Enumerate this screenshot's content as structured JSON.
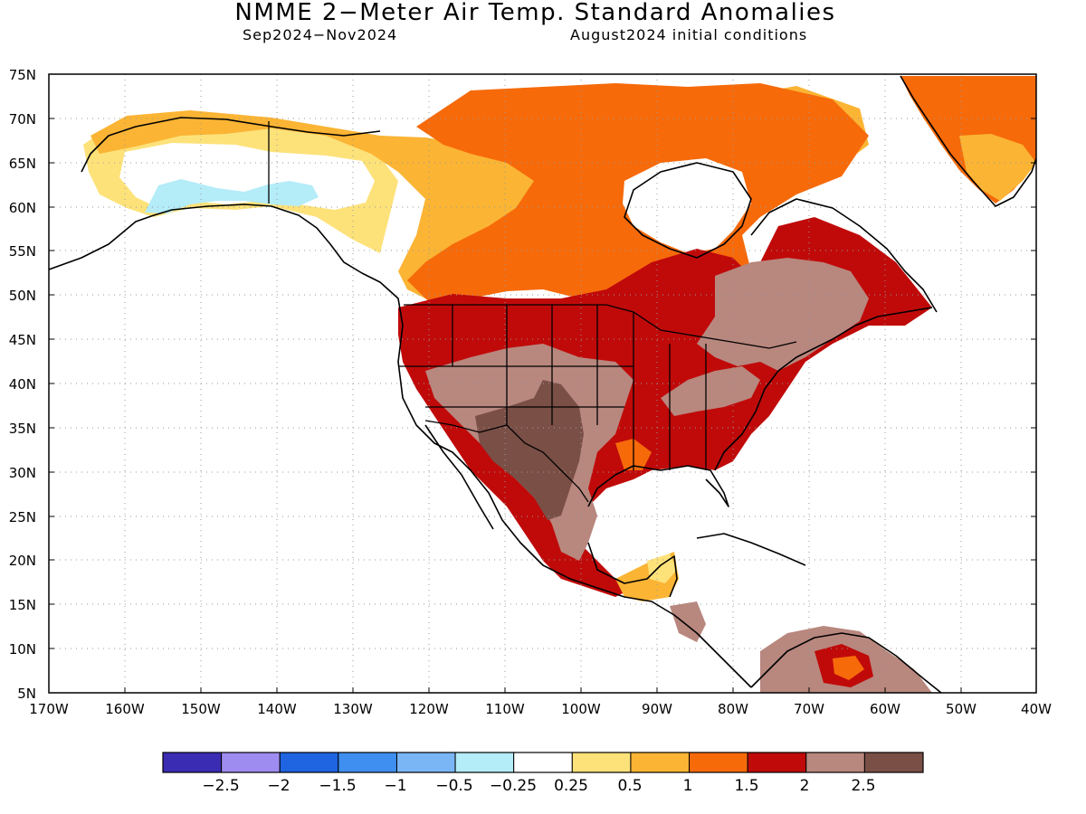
{
  "header": {
    "title": "NMME 2−Meter Air Temp. Standard Anomalies",
    "period": "Sep2024−Nov2024",
    "initial_conditions": "August2024 initial conditions"
  },
  "map": {
    "lat_range": [
      5,
      75
    ],
    "lon_range": [
      -170,
      -40
    ],
    "lat_labels": [
      "75N",
      "70N",
      "65N",
      "60N",
      "55N",
      "50N",
      "45N",
      "40N",
      "35N",
      "30N",
      "25N",
      "20N",
      "15N",
      "10N",
      "5N"
    ],
    "lon_labels": [
      "170W",
      "160W",
      "150W",
      "140W",
      "130W",
      "120W",
      "110W",
      "100W",
      "90W",
      "80W",
      "70W",
      "60W",
      "50W",
      "40W"
    ],
    "grid": "dotted"
  },
  "colorbar": {
    "labels": [
      "−2.5",
      "−2",
      "−1.5",
      "−1",
      "−0.5",
      "−0.25",
      "0.25",
      "0.5",
      "1",
      "1.5",
      "2",
      "2.5"
    ],
    "colors": [
      "#3b2cb4",
      "#9f8cf0",
      "#1f64e0",
      "#3f8ff0",
      "#7ab6f5",
      "#b4ecf8",
      "#ffffff",
      "#fde27a",
      "#fbb434",
      "#f66a0a",
      "#c00a0a",
      "#b8877e",
      "#7a4f46"
    ]
  },
  "colors": {
    "land_lines": "#000000",
    "coast_white": "#ffffff"
  }
}
